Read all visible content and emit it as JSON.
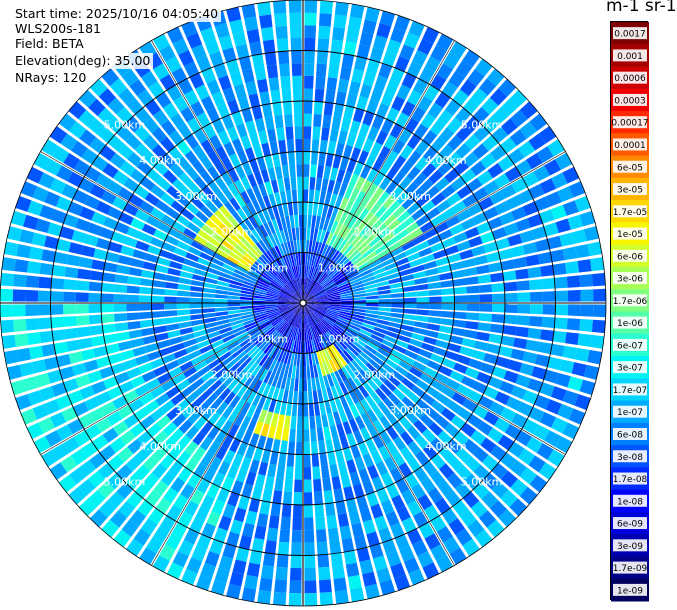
{
  "info": {
    "start_time": "Start time: 2025/10/16 04:05:40",
    "instrument": "WLS200s-181",
    "field": "Field: BETA",
    "elevation": "Elevation(deg): 35.00",
    "nrays": "NRays: 120"
  },
  "colorbar": {
    "title": "m-1 sr-1",
    "entries": [
      {
        "label": "0.0017",
        "color": "#7f0000"
      },
      {
        "label": "0.001",
        "color": "#a50000"
      },
      {
        "label": "0.0006",
        "color": "#cc0000"
      },
      {
        "label": "0.0003",
        "color": "#f00000"
      },
      {
        "label": "0.00017",
        "color": "#ff2a00"
      },
      {
        "label": "0.0001",
        "color": "#ff5a00"
      },
      {
        "label": "6e-05",
        "color": "#ff8a00"
      },
      {
        "label": "3e-05",
        "color": "#ffb400"
      },
      {
        "label": "1.7e-05",
        "color": "#ffd700"
      },
      {
        "label": "1e-05",
        "color": "#f6f600"
      },
      {
        "label": "6e-06",
        "color": "#d2ff2a"
      },
      {
        "label": "3e-06",
        "color": "#a8ff55"
      },
      {
        "label": "1.7e-06",
        "color": "#80ff80"
      },
      {
        "label": "1e-06",
        "color": "#55ffa8"
      },
      {
        "label": "6e-07",
        "color": "#2affd2"
      },
      {
        "label": "3e-07",
        "color": "#00f4f4"
      },
      {
        "label": "1.7e-07",
        "color": "#00d4ff"
      },
      {
        "label": "1e-07",
        "color": "#00aaff"
      },
      {
        "label": "6e-08",
        "color": "#0080ff"
      },
      {
        "label": "3e-08",
        "color": "#0055ff"
      },
      {
        "label": "1.7e-08",
        "color": "#002aff"
      },
      {
        "label": "1e-08",
        "color": "#0000ff"
      },
      {
        "label": "6e-09",
        "color": "#0000d8"
      },
      {
        "label": "3e-09",
        "color": "#0000b0"
      },
      {
        "label": "1.7e-09",
        "color": "#000088"
      },
      {
        "label": "1e-09",
        "color": "#00005e"
      }
    ]
  },
  "chart_data": {
    "type": "heatmap",
    "projection": "polar PPI",
    "elevation_deg": 35.0,
    "nrays": 120,
    "range_rings_km": [
      1,
      2,
      3,
      4,
      5
    ],
    "ring_labels": [
      "1.00km",
      "2.00km",
      "3.00km",
      "4.00km",
      "5.00km"
    ],
    "max_range_km": 6.0,
    "field": "BETA",
    "units": "m-1 sr-1",
    "color_scale": "log",
    "value_range": [
      1e-09,
      0.0017
    ],
    "background_level": 1e-07,
    "features": [
      {
        "azimuth_deg": [
          20,
          60
        ],
        "range_km": [
          1.3,
          2.8
        ],
        "level": 1e-06
      },
      {
        "azimuth_deg": [
          145,
          165
        ],
        "range_km": [
          0.9,
          1.5
        ],
        "level": 6e-06
      },
      {
        "azimuth_deg": [
          185,
          200
        ],
        "range_km": [
          2.3,
          2.8
        ],
        "level": 6e-06
      },
      {
        "azimuth_deg": [
          300,
          320
        ],
        "range_km": [
          1.3,
          2.4
        ],
        "level": 6e-06
      },
      {
        "azimuth_deg": [
          200,
          270
        ],
        "range_km": [
          3.6,
          6.0
        ],
        "level": 2.5e-07
      }
    ]
  }
}
